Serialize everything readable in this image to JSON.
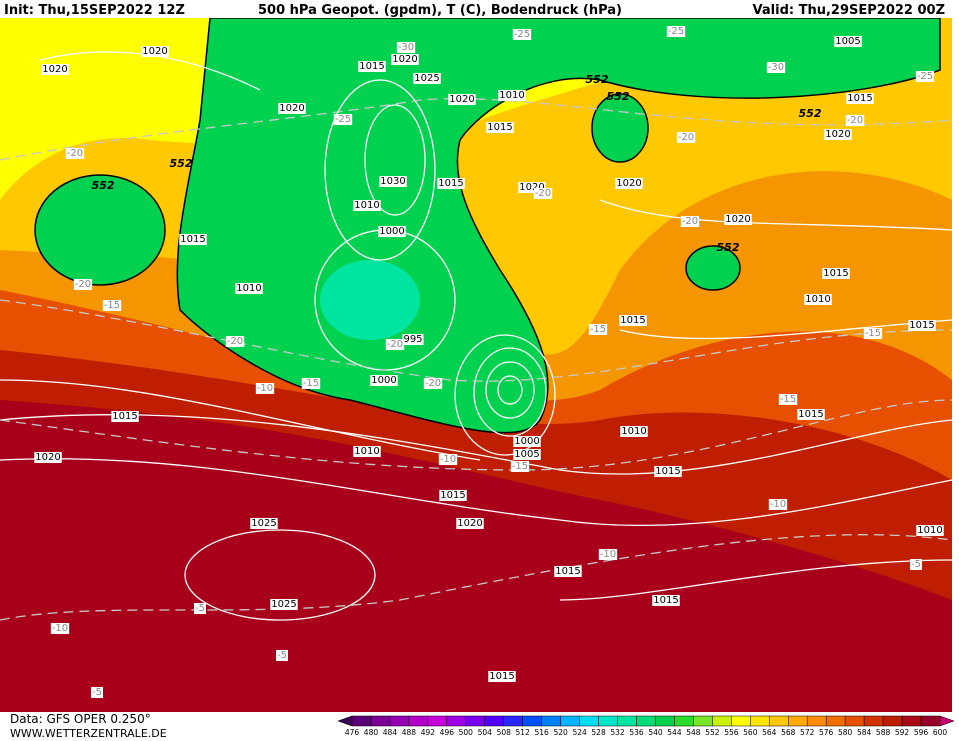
{
  "header": {
    "init": "Init: Thu,15SEP2022 12Z",
    "title": "500 hPa Geopot. (gpdm), T (C), Bodendruck (hPa)",
    "valid": "Valid: Thu,29SEP2022 00Z"
  },
  "footer": {
    "data": "Data: GFS OPER 0.250°",
    "site": "WWW.WETTERZENTRALE.DE"
  },
  "map": {
    "isobar_labels": [
      "1020",
      "1020",
      "1015",
      "1020",
      "1025",
      "1020",
      "1010",
      "1015",
      "1020",
      "1030",
      "1015",
      "1010",
      "1000",
      "1015",
      "1010",
      "995",
      "1000",
      "1020",
      "1020",
      "1020",
      "1015",
      "1010",
      "1015",
      "1015",
      "1005",
      "1015",
      "1020",
      "1015",
      "1010",
      "1020",
      "1015",
      "1020",
      "1025",
      "1025",
      "1010",
      "1015",
      "1015",
      "1015",
      "1015",
      "1015",
      "1010",
      "1005",
      "1000"
    ],
    "temperature_labels": [
      "-25",
      "-25",
      "-30",
      "-30",
      "-25",
      "-25",
      "-20",
      "-20",
      "-20",
      "-20",
      "-20",
      "-20",
      "-15",
      "-20",
      "-15",
      "-10",
      "-15",
      "-20",
      "-20",
      "-10",
      "-15",
      "-15",
      "-15",
      "-10",
      "-10",
      "-5",
      "-5",
      "-10",
      "-5",
      "-5"
    ],
    "height_labels": [
      "552",
      "552",
      "552",
      "552",
      "552",
      "552"
    ]
  },
  "colorbar": {
    "levels": [
      476,
      480,
      484,
      488,
      492,
      496,
      500,
      504,
      508,
      512,
      516,
      520,
      524,
      528,
      532,
      536,
      540,
      544,
      548,
      552,
      556,
      560,
      564,
      568,
      572,
      576,
      580,
      584,
      588,
      592,
      596,
      600
    ],
    "colors": [
      "#3a0050",
      "#5a0078",
      "#7a0096",
      "#9600b4",
      "#b400c8",
      "#c800dc",
      "#a000e6",
      "#7800f0",
      "#5000ff",
      "#2828ff",
      "#0050ff",
      "#0080ff",
      "#00b4ff",
      "#00dcf0",
      "#00e6c8",
      "#00e6a0",
      "#00dc78",
      "#00d250",
      "#28dc28",
      "#78e628",
      "#c8f000",
      "#ffff00",
      "#ffe600",
      "#ffc800",
      "#ffaa00",
      "#ff8c00",
      "#f06e00",
      "#e65000",
      "#d23200",
      "#be1e00",
      "#aa0a14",
      "#960028",
      "#c8006e"
    ]
  }
}
